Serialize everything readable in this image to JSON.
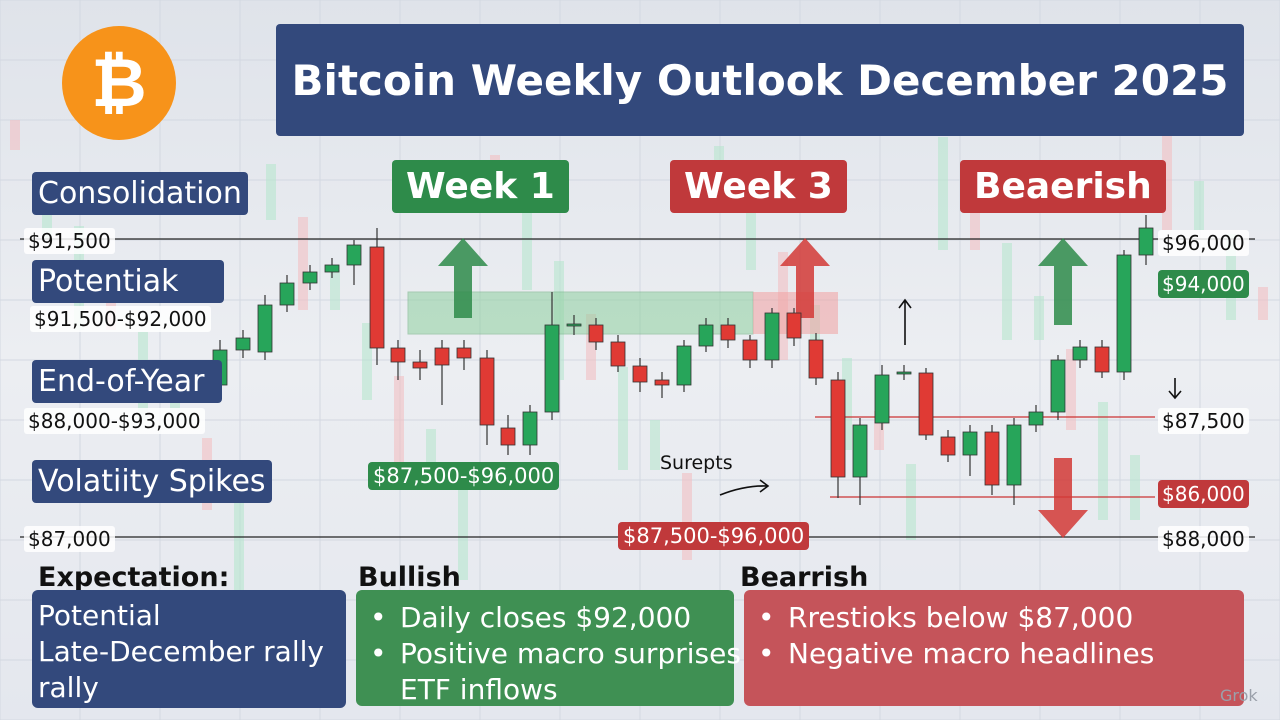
{
  "title": "Bitcoin  Weekly Outlook December 2025",
  "tags": [
    "Week 1",
    "Week 3",
    "Beaerish"
  ],
  "left": {
    "consolidation": "Consolidation",
    "line_top": "$91,500",
    "potential": "Potentiak",
    "potential_range": "$91,500-$92,000",
    "end_of_year": "End-of-Year",
    "end_of_year_range": "$88,000-$93,000",
    "volatility": "Volatiity Spikes",
    "line_bottom": "$87,000"
  },
  "center": {
    "green_range": "$87,500-$96,000",
    "note": "Surepts",
    "red_range": "$87,500-$96,000"
  },
  "right": {
    "top": "$96,000",
    "green": "$94,000",
    "mid": "$87,500",
    "red": "$86,000",
    "bottom": "$88,000"
  },
  "expectation": {
    "heading": "Expectation:",
    "lines": [
      "Potential",
      "Late-December rally",
      "rally"
    ]
  },
  "bullish": {
    "heading": "Bullish",
    "items": [
      "Daily closes $92,000",
      "Positive macro surprises",
      "ETF inflows"
    ]
  },
  "bearish": {
    "heading": "Bearrish",
    "items": [
      "Rrestioks below $87,000",
      "Negative macro headlines"
    ]
  },
  "watermark": "Grok"
}
